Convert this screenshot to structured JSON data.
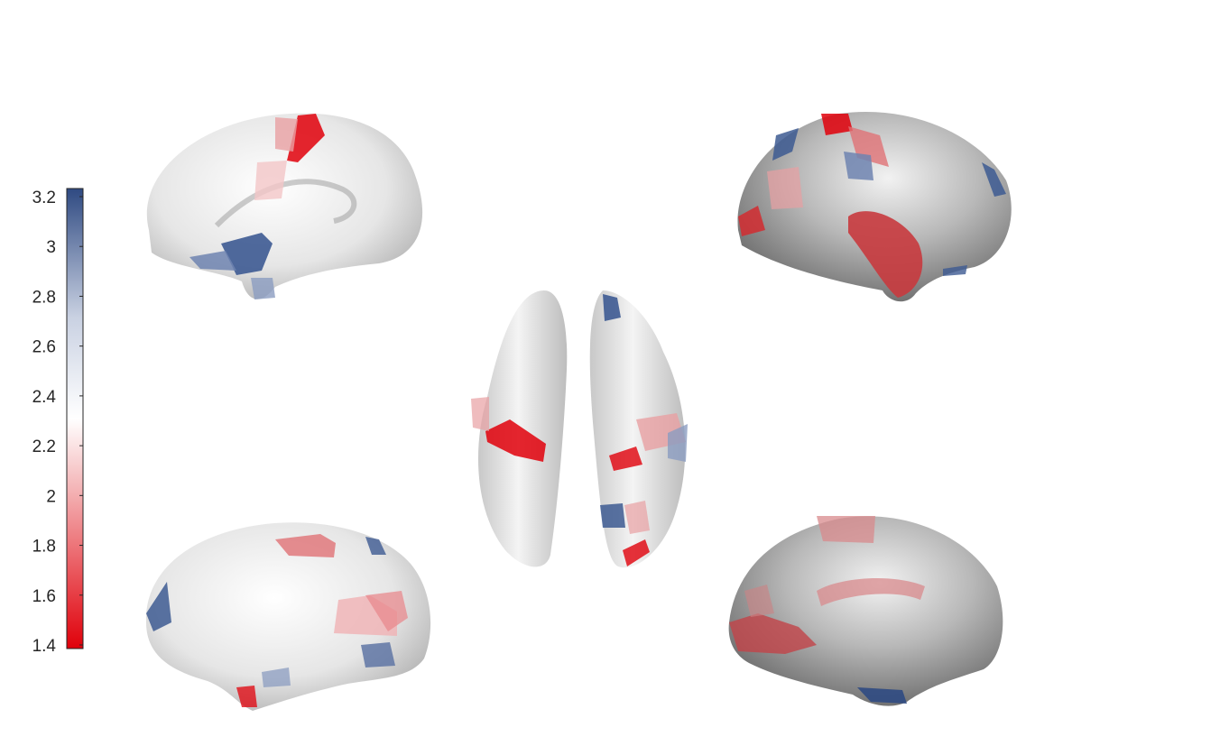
{
  "colorbar": {
    "ticks": [
      "3.2",
      "3",
      "2.8",
      "2.6",
      "2.4",
      "2.2",
      "2",
      "1.8",
      "1.6",
      "1.4"
    ],
    "range": [
      1.4,
      3.2
    ],
    "colors": {
      "low": "#e0000a",
      "mid": "#ffffff",
      "high": "#2f4a82"
    }
  },
  "views": [
    {
      "id": "left-lateral",
      "shade": "light"
    },
    {
      "id": "right-lateral",
      "shade": "dark"
    },
    {
      "id": "dorsal",
      "shade": "light"
    },
    {
      "id": "left-medial",
      "shade": "light"
    },
    {
      "id": "right-medial",
      "shade": "dark"
    }
  ],
  "palette": {
    "red": "#e0000a",
    "pink": "#e8a0a2",
    "blue": "#3d5a92",
    "pale-blue": "#8b9cc0"
  }
}
